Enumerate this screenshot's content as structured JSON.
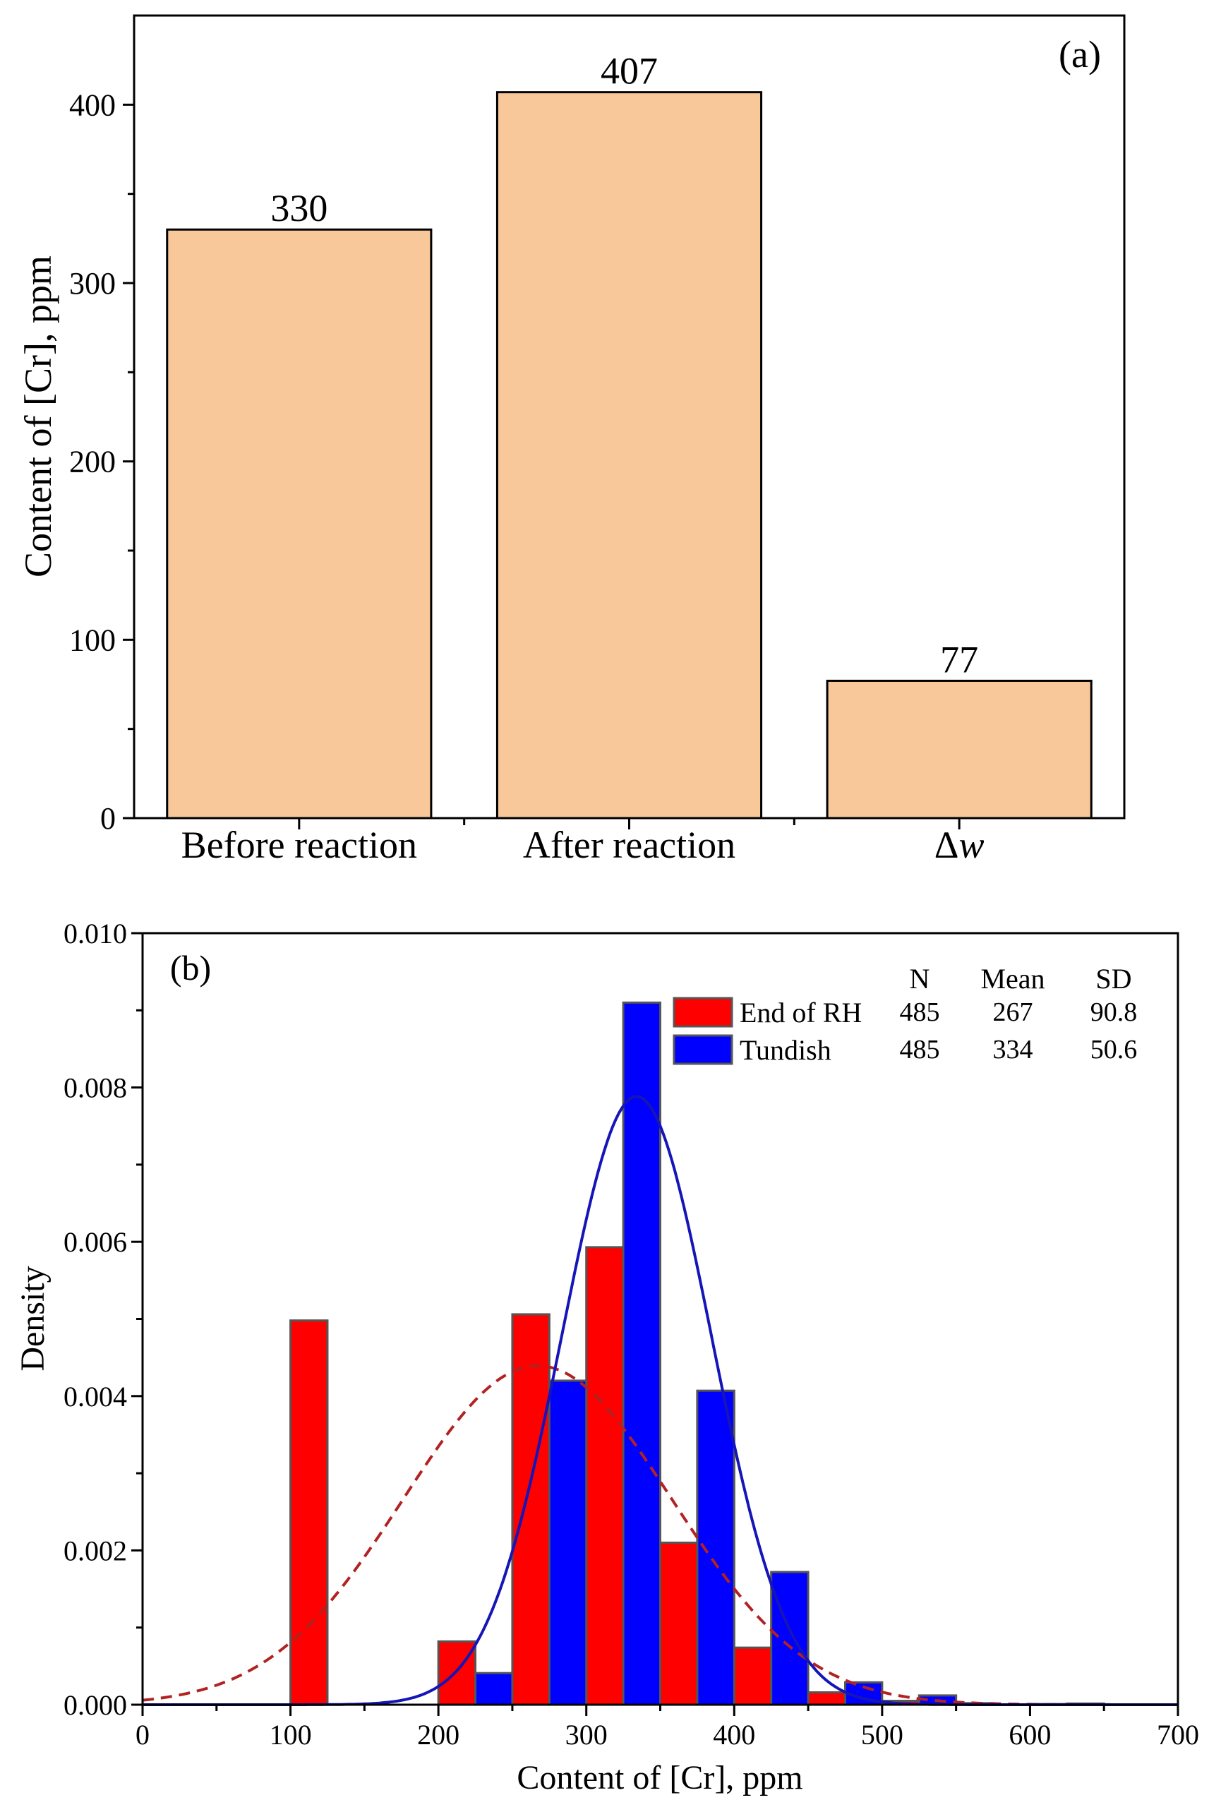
{
  "chart_data": [
    {
      "type": "bar",
      "panel_label": "(a)",
      "title": "",
      "ylabel": "Content of [Cr], ppm",
      "xlabel": "",
      "categories": [
        "Before reaction",
        "After reaction",
        "Δw"
      ],
      "values": [
        330,
        407,
        77
      ],
      "data_labels": [
        "330",
        "407",
        "77"
      ],
      "ylim": [
        0,
        450
      ],
      "yticks": [
        0,
        100,
        200,
        300,
        400
      ],
      "ytick_labels": [
        "0",
        "100",
        "200",
        "300",
        "400"
      ],
      "bar_color": "#F9C89A"
    },
    {
      "type": "bar",
      "subtype": "histogram-with-normal-fit",
      "panel_label": "(b)",
      "title": "",
      "xlabel": "Content of [Cr], ppm",
      "ylabel": "Density",
      "xlim": [
        0,
        700
      ],
      "ylim": [
        0,
        0.01
      ],
      "xticks": [
        0,
        100,
        200,
        300,
        400,
        500,
        600,
        700
      ],
      "xtick_labels": [
        "0",
        "100",
        "200",
        "300",
        "400",
        "500",
        "600",
        "700"
      ],
      "yticks": [
        0,
        0.002,
        0.004,
        0.006,
        0.008,
        0.01
      ],
      "ytick_labels": [
        "0.000",
        "0.002",
        "0.004",
        "0.006",
        "0.008",
        "0.010"
      ],
      "bin_width": 25,
      "series": [
        {
          "name": "End of RH",
          "color": "#FF0000",
          "bin_starts": [
            100,
            200,
            250,
            300,
            350,
            400,
            450,
            500,
            550,
            600,
            625
          ],
          "values": [
            0.00498,
            0.00082,
            0.00506,
            0.00593,
            0.0021,
            0.00074,
            0.00016,
            5e-05,
            2e-05,
            8e-06,
            8e-06
          ],
          "fit": {
            "mean": 267,
            "sd": 90.8,
            "style": "dashed",
            "color": "#B22222"
          }
        },
        {
          "name": "Tundish",
          "color": "#0000FF",
          "bin_starts": [
            225,
            275,
            325,
            375,
            425,
            475,
            525,
            625
          ],
          "values": [
            0.00041,
            0.0042,
            0.0091,
            0.00407,
            0.00172,
            0.00029,
            0.00012,
            1.5e-05
          ],
          "fit": {
            "mean": 334,
            "sd": 50.6,
            "style": "solid",
            "color": "#1515B8"
          }
        }
      ],
      "legend": {
        "placement": "top-right",
        "headers": [
          "N",
          "Mean",
          "SD"
        ],
        "rows": [
          {
            "name": "End of RH",
            "N": "485",
            "Mean": "267",
            "SD": "90.8"
          },
          {
            "name": "Tundish",
            "N": "485",
            "Mean": "334",
            "SD": "50.6"
          }
        ]
      }
    }
  ]
}
